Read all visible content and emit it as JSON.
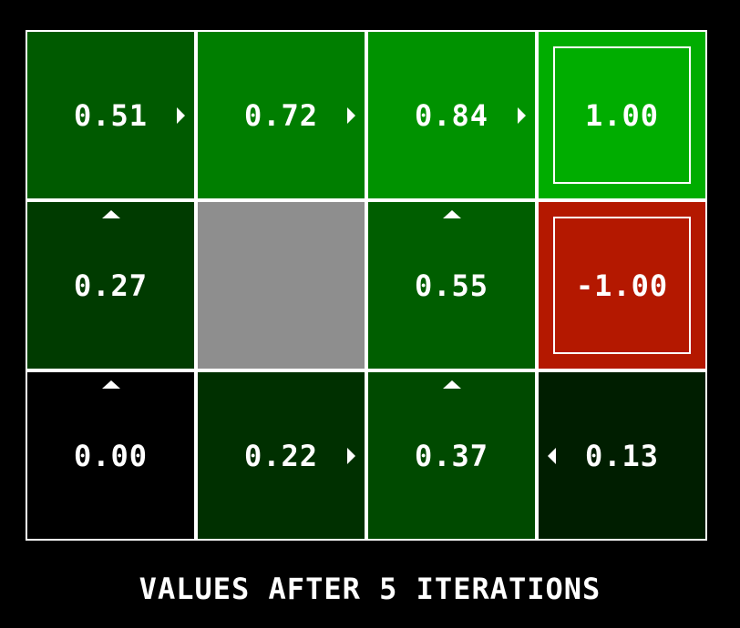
{
  "caption": "VALUES AFTER 5 ITERATIONS",
  "grid": {
    "rows": [
      [
        {
          "value": "0.51",
          "color": "#005a00",
          "arrow": "east",
          "terminal": false,
          "wall": false
        },
        {
          "value": "0.72",
          "color": "#007e00",
          "arrow": "east",
          "terminal": false,
          "wall": false
        },
        {
          "value": "0.84",
          "color": "#009200",
          "arrow": "east",
          "terminal": false,
          "wall": false
        },
        {
          "value": "1.00",
          "color": "#00ad00",
          "arrow": "",
          "terminal": true,
          "wall": false
        }
      ],
      [
        {
          "value": "0.27",
          "color": "#003b00",
          "arrow": "north",
          "terminal": false,
          "wall": false
        },
        {
          "value": "",
          "color": "#8e8e8e",
          "arrow": "",
          "terminal": false,
          "wall": true
        },
        {
          "value": "0.55",
          "color": "#005e00",
          "arrow": "north",
          "terminal": false,
          "wall": false
        },
        {
          "value": "-1.00",
          "color": "#b41800",
          "arrow": "",
          "terminal": true,
          "wall": false
        }
      ],
      [
        {
          "value": "0.00",
          "color": "#000000",
          "arrow": "north",
          "terminal": false,
          "wall": false
        },
        {
          "value": "0.22",
          "color": "#003000",
          "arrow": "east",
          "terminal": false,
          "wall": false
        },
        {
          "value": "0.37",
          "color": "#004a00",
          "arrow": "north",
          "terminal": false,
          "wall": false
        },
        {
          "value": "0.13",
          "color": "#001e00",
          "arrow": "west",
          "terminal": false,
          "wall": false
        }
      ]
    ]
  }
}
